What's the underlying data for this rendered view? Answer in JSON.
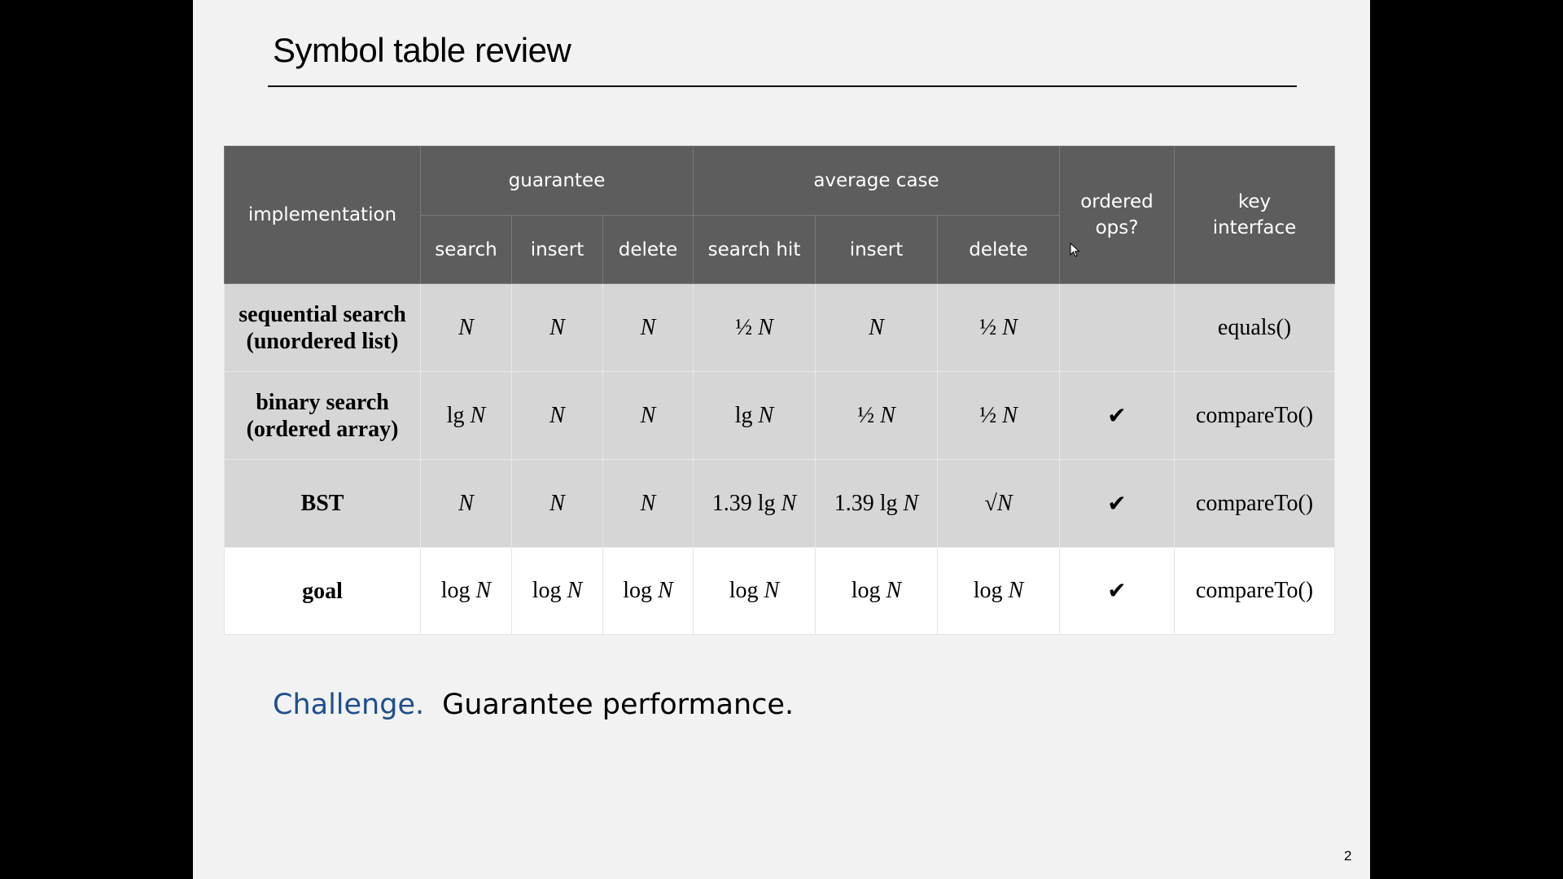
{
  "slide": {
    "title": "Symbol table review",
    "page_number": "2"
  },
  "table": {
    "header": {
      "implementation": "implementation",
      "guarantee": "guarantee",
      "average_case": "average case",
      "ordered_ops": "ordered ops?",
      "key_interface": "key interface",
      "sub": [
        "search",
        "insert",
        "delete",
        "search hit",
        "insert",
        "delete"
      ]
    },
    "rows": [
      {
        "name_line1": "sequential search",
        "name_line2": "(unordered list)",
        "cells": [
          {
            "coef": "",
            "N": "N"
          },
          {
            "coef": "",
            "N": "N"
          },
          {
            "coef": "",
            "N": "N"
          },
          {
            "coef": "½ ",
            "N": "N"
          },
          {
            "coef": "",
            "N": "N"
          },
          {
            "coef": "½ ",
            "N": "N"
          }
        ],
        "ordered": "",
        "interface": "equals()"
      },
      {
        "name_line1": "binary search",
        "name_line2": "(ordered array)",
        "cells": [
          {
            "coef": "lg ",
            "N": "N"
          },
          {
            "coef": "",
            "N": "N"
          },
          {
            "coef": "",
            "N": "N"
          },
          {
            "coef": "lg ",
            "N": "N"
          },
          {
            "coef": "½ ",
            "N": "N"
          },
          {
            "coef": "½ ",
            "N": "N"
          }
        ],
        "ordered": "✔",
        "interface": "compareTo()"
      },
      {
        "name_line1": "BST",
        "name_line2": "",
        "cells": [
          {
            "coef": "",
            "N": "N"
          },
          {
            "coef": "",
            "N": "N"
          },
          {
            "coef": "",
            "N": "N"
          },
          {
            "coef": "1.39 lg ",
            "N": "N"
          },
          {
            "coef": "1.39 lg ",
            "N": "N"
          },
          {
            "coef": "√",
            "N": "N"
          }
        ],
        "ordered": "✔",
        "interface": "compareTo()"
      },
      {
        "name_line1": "goal",
        "name_line2": "",
        "cells": [
          {
            "coef": "log ",
            "N": "N"
          },
          {
            "coef": "log ",
            "N": "N"
          },
          {
            "coef": "log ",
            "N": "N"
          },
          {
            "coef": "log ",
            "N": "N"
          },
          {
            "coef": "log ",
            "N": "N"
          },
          {
            "coef": "log ",
            "N": "N"
          }
        ],
        "ordered": "✔",
        "interface": "compareTo()"
      }
    ]
  },
  "challenge": {
    "label": "Challenge.",
    "text": "Guarantee performance."
  },
  "colors": {
    "header_bg": "#5d5d5d",
    "row_bg": "#d6d6d6",
    "goal_red": "#8b2a1a",
    "challenge_blue": "#1f4e8c"
  }
}
